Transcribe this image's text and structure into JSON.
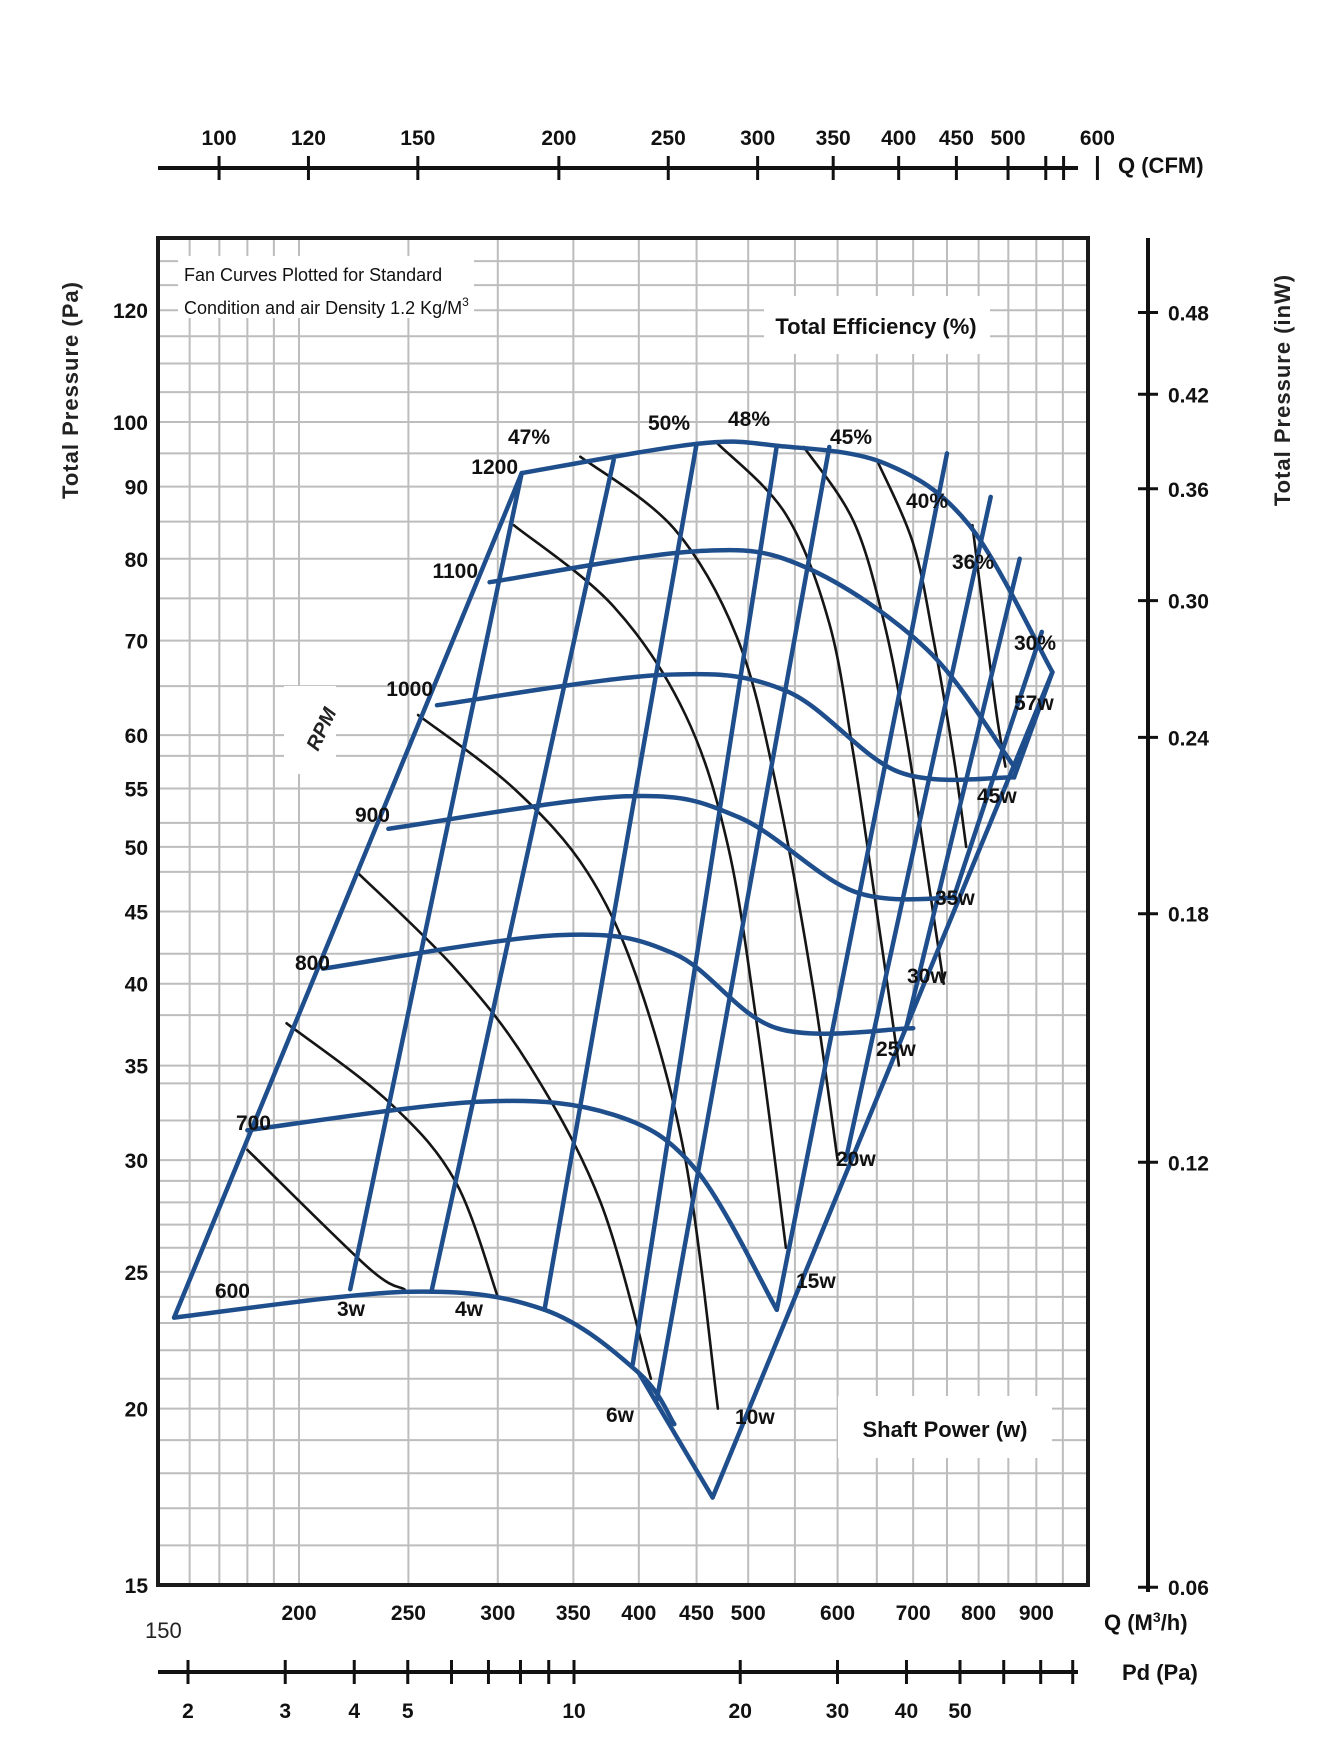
{
  "chart_data": {
    "type": "line",
    "title": "Fan Curves Plotted for Standard Condition and air Density 1.2 Kg/M3",
    "note_lines": [
      "Fan  Curves  Plotted  for  Standard",
      "Condition and air Density 1.2 Kg/M"
    ],
    "note_superscript": "3",
    "efficiency_title": "Total Efficiency (%)",
    "power_title": "Shaft Power (w)",
    "rpm_label": "RPM",
    "x_primary": {
      "label": "Q (M",
      "label_superscript": "3",
      "label_suffix": "/h)",
      "scale": "log",
      "range": [
        150,
        1000
      ],
      "ticks": [
        "200",
        "250",
        "300",
        "350",
        "400",
        "450",
        "500",
        "600",
        "700",
        "800",
        "900"
      ],
      "origin_label": "150"
    },
    "x_top": {
      "label": "Q (CFM)",
      "ticks": [
        "100",
        "120",
        "150",
        "200",
        "250",
        "300",
        "350",
        "400",
        "450",
        "500",
        "600"
      ]
    },
    "x_bottom": {
      "label": "Pd (Pa)",
      "ticks": [
        "2",
        "3",
        "4",
        "5",
        "10",
        "20",
        "30",
        "40",
        "50"
      ]
    },
    "y_left": {
      "label": "Total Pressure (Pa)",
      "scale": "log",
      "range": [
        15,
        135
      ],
      "ticks": [
        "15",
        "20",
        "25",
        "30",
        "35",
        "40",
        "45",
        "50",
        "55",
        "60",
        "70",
        "80",
        "90",
        "100",
        "120"
      ]
    },
    "y_right": {
      "label": "Total Pressure (inW)",
      "ticks": [
        "0.06",
        "0.12",
        "0.18",
        "0.24",
        "0.30",
        "0.36",
        "0.42",
        "0.48"
      ]
    },
    "rpm_curves": [
      {
        "rpm": "600",
        "points": [
          [
            155,
            23.2
          ],
          [
            250,
            24.2
          ],
          [
            330,
            23.5
          ],
          [
            400,
            21.2
          ],
          [
            430,
            19.5
          ]
        ]
      },
      {
        "rpm": "700",
        "points": [
          [
            180,
            31.5
          ],
          [
            290,
            33.0
          ],
          [
            380,
            32.3
          ],
          [
            450,
            29.5
          ],
          [
            530,
            23.5
          ]
        ]
      },
      {
        "rpm": "800",
        "points": [
          [
            210,
            41.0
          ],
          [
            340,
            43.3
          ],
          [
            430,
            42.0
          ],
          [
            530,
            37.2
          ],
          [
            700,
            37.2
          ]
        ]
      },
      {
        "rpm": "900",
        "points": [
          [
            240,
            51.5
          ],
          [
            390,
            54.3
          ],
          [
            490,
            52.5
          ],
          [
            620,
            46.5
          ],
          [
            760,
            46.0
          ]
        ]
      },
      {
        "rpm": "1000",
        "points": [
          [
            265,
            63.0
          ],
          [
            420,
            66.2
          ],
          [
            540,
            64.5
          ],
          [
            680,
            56.5
          ],
          [
            860,
            56.0
          ]
        ]
      },
      {
        "rpm": "1100",
        "points": [
          [
            295,
            77.0
          ],
          [
            450,
            81.0
          ],
          [
            560,
            79.0
          ],
          [
            720,
            69.0
          ],
          [
            860,
            57.0
          ]
        ]
      },
      {
        "rpm": "1200",
        "points": [
          [
            315,
            92.0
          ],
          [
            450,
            96.5
          ],
          [
            530,
            96.2
          ],
          [
            660,
            93.5
          ],
          [
            785,
            84.5
          ],
          [
            930,
            66.5
          ]
        ]
      }
    ],
    "efficiency_labels": [
      "47%",
      "50%",
      "48%",
      "45%",
      "40%",
      "36%",
      "30%"
    ],
    "power_labels": [
      "3w",
      "4w",
      "6w",
      "10w",
      "15w",
      "20w",
      "25w",
      "30w",
      "35w",
      "45w",
      "57w"
    ]
  }
}
